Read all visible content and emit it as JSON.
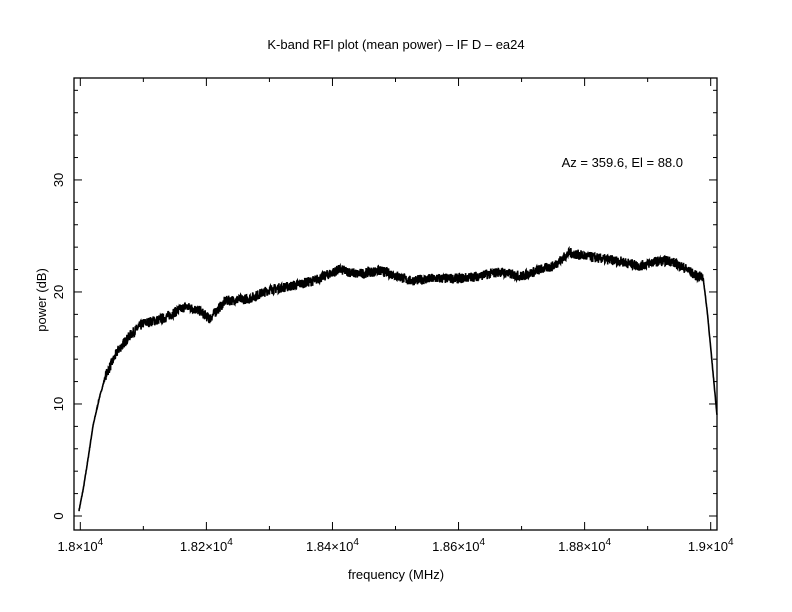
{
  "chart_data": {
    "type": "line",
    "title": "K-band RFI plot (mean power) – IF D – ea24",
    "annotation": "Az = 359.6, El = 88.0",
    "xlabel": "frequency (MHz)",
    "ylabel": "power (dB)",
    "xlim": [
      17990,
      19010
    ],
    "ylim": [
      -1.25,
      39.1
    ],
    "grid": false,
    "x_ticks": [
      {
        "value": 18000,
        "base": "1.8×10",
        "exp": "4"
      },
      {
        "value": 18200,
        "base": "1.82×10",
        "exp": "4"
      },
      {
        "value": 18400,
        "base": "1.84×10",
        "exp": "4"
      },
      {
        "value": 18600,
        "base": "1.86×10",
        "exp": "4"
      },
      {
        "value": 18800,
        "base": "1.88×10",
        "exp": "4"
      },
      {
        "value": 19000,
        "base": "1.9×10",
        "exp": "4"
      }
    ],
    "y_ticks": [
      {
        "value": 0,
        "label": "0"
      },
      {
        "value": 10,
        "label": "10"
      },
      {
        "value": 20,
        "label": "20"
      },
      {
        "value": 30,
        "label": "30"
      }
    ],
    "series": [
      {
        "name": "mean power",
        "x": [
          17998,
          18005,
          18012,
          18020,
          18030,
          18040,
          18046,
          18060,
          18080,
          18100,
          18130,
          18167,
          18190,
          18205,
          18230,
          18268,
          18300,
          18332,
          18370,
          18411,
          18440,
          18475,
          18500,
          18522,
          18560,
          18602,
          18630,
          18665,
          18700,
          18729,
          18750,
          18776,
          18800,
          18824,
          18860,
          18887,
          18910,
          18935,
          18960,
          18975,
          18988,
          18995,
          19000,
          19005,
          19010
        ],
        "y": [
          0.5,
          2.5,
          5,
          8,
          10.5,
          12.5,
          13.2,
          14.8,
          16.2,
          17.2,
          17.6,
          18.7,
          18.3,
          17.6,
          19.2,
          19.4,
          20.2,
          20.5,
          21,
          22,
          21.6,
          21.9,
          21.5,
          21,
          21.2,
          21.2,
          21.4,
          21.8,
          21.4,
          22,
          22.3,
          23.5,
          23.2,
          23,
          22.7,
          22.3,
          22.7,
          22.8,
          22.1,
          21.5,
          21.3,
          18,
          15,
          12,
          9
        ]
      }
    ]
  }
}
